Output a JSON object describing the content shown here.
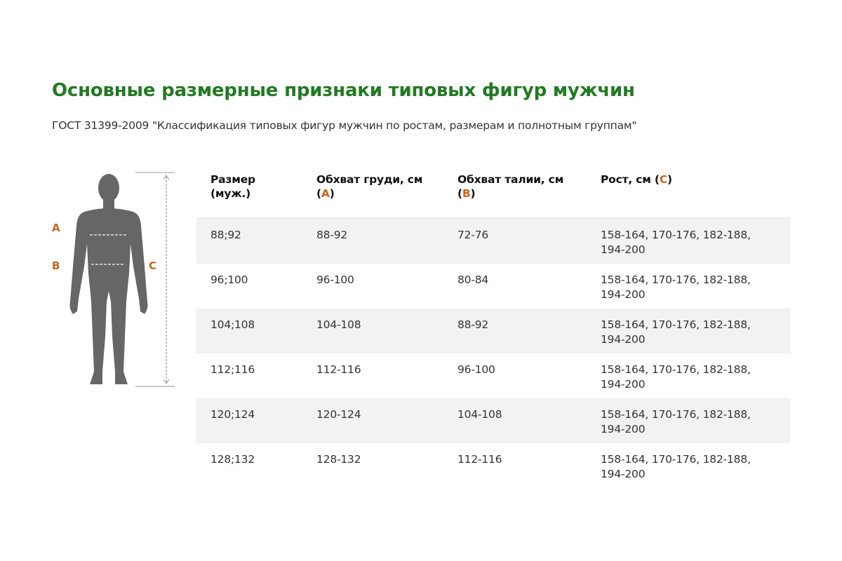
{
  "title": "Основные размерные признаки типовых фигур мужчин",
  "subtitle": "ГОСТ 31399-2009 \"Классификация типовых фигур мужчин по ростам, размерам и полнотным группам\"",
  "figure": {
    "label_a": "A",
    "label_b": "B",
    "label_c": "C",
    "accent_color": "#c9661c",
    "silhouette_color": "#666666"
  },
  "table": {
    "headers": [
      {
        "text": "Размер (муж.)",
        "marker": ""
      },
      {
        "text": "Обхват груди, см",
        "marker": "A"
      },
      {
        "text": "Обхват талии, см",
        "marker": "B"
      },
      {
        "text": "Рост, см",
        "marker": "C"
      }
    ],
    "rows": [
      [
        "88;92",
        "88-92",
        "72-76",
        "158-164, 170-176, 182-188, 194-200"
      ],
      [
        "96;100",
        "96-100",
        "80-84",
        "158-164, 170-176, 182-188, 194-200"
      ],
      [
        "104;108",
        "104-108",
        "88-92",
        "158-164, 170-176, 182-188, 194-200"
      ],
      [
        "112;116",
        "112-116",
        "96-100",
        "158-164, 170-176, 182-188, 194-200"
      ],
      [
        "120;124",
        "120-124",
        "104-108",
        "158-164, 170-176, 182-188, 194-200"
      ],
      [
        "128;132",
        "128-132",
        "112-116",
        "158-164, 170-176, 182-188, 194-200"
      ]
    ]
  },
  "colors": {
    "title": "#227a22",
    "accent": "#c9661c",
    "stripe": "#f2f2f2"
  }
}
